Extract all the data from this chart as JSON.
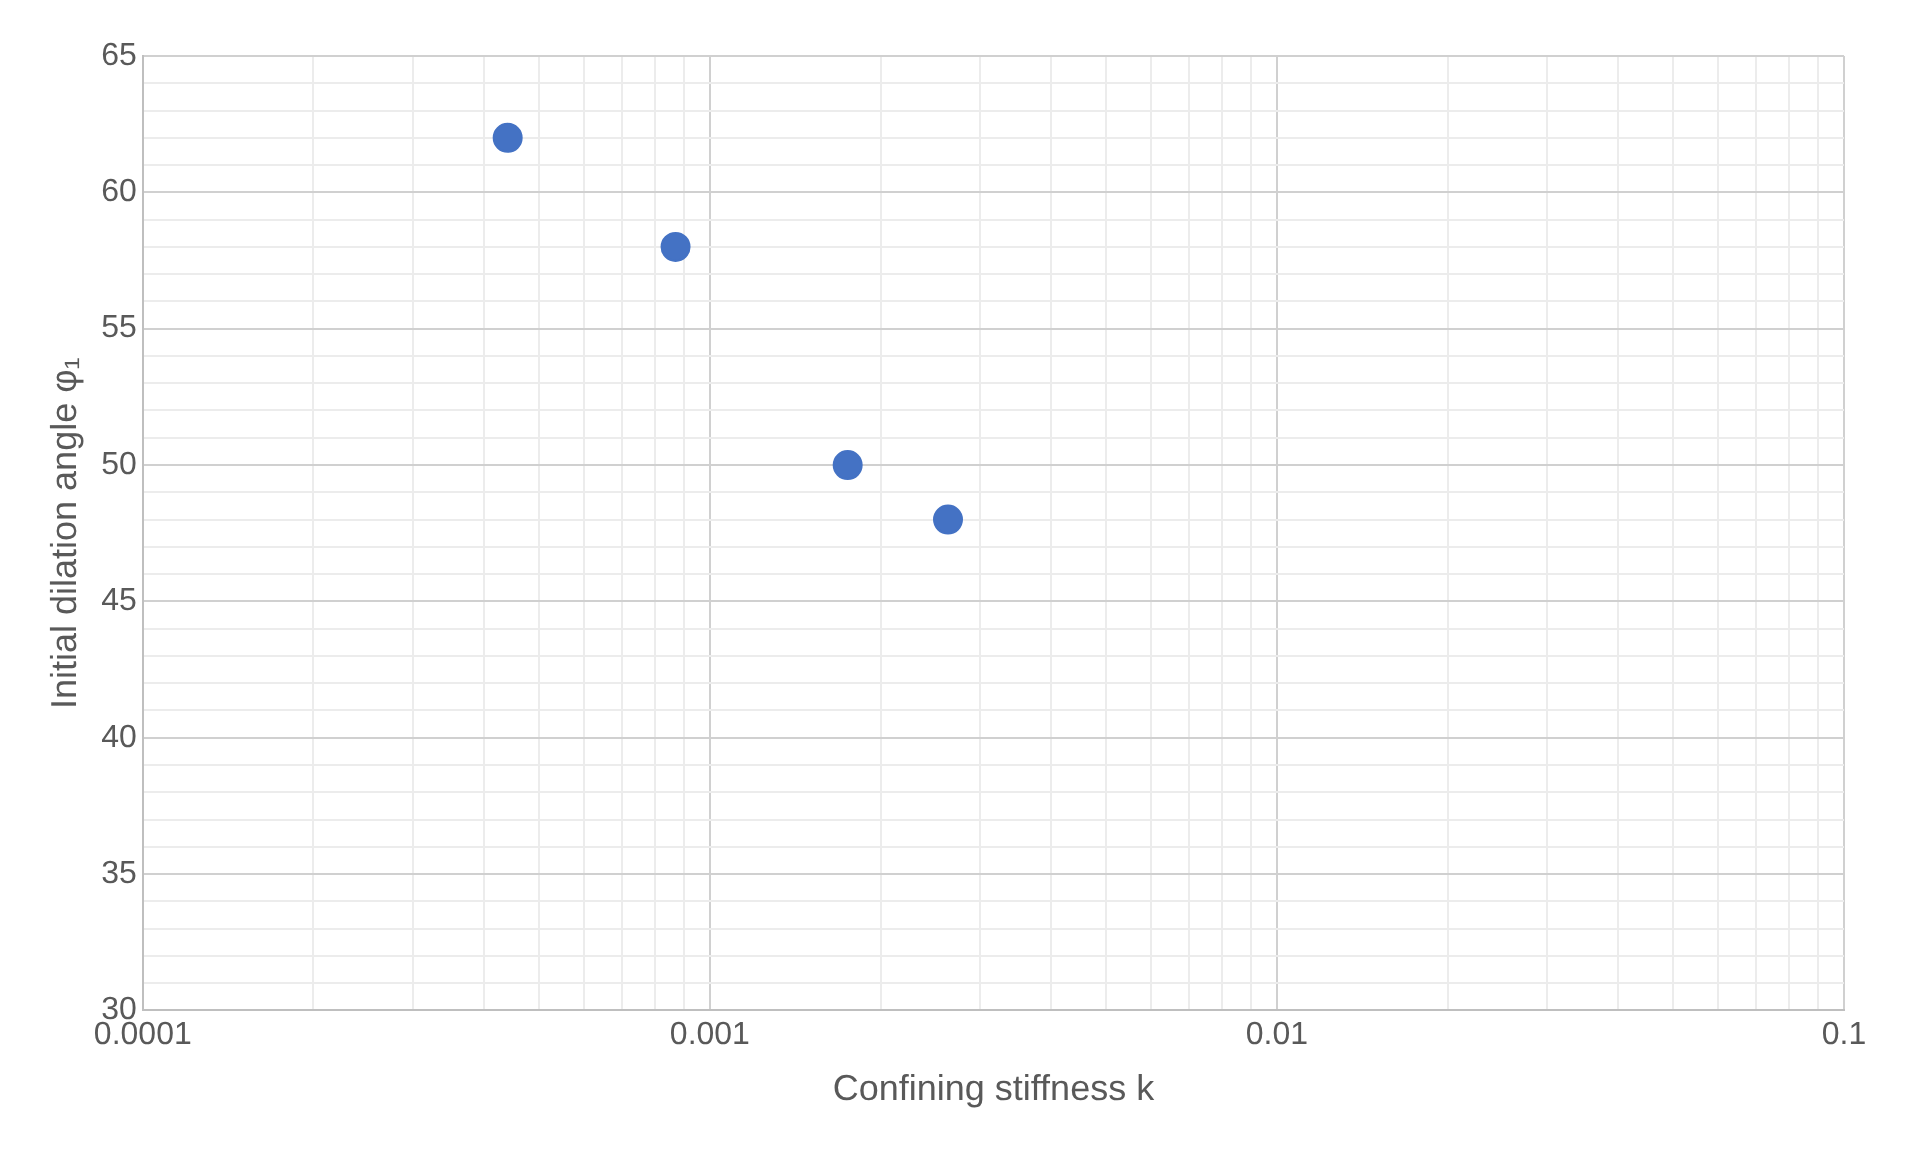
{
  "chart_data": {
    "type": "scatter",
    "xlabel": "Confining stiffness k",
    "ylabel": "Initial dilation angle φ₁",
    "x": [
      0.00044,
      0.00087,
      0.00175,
      0.00263
    ],
    "series": [
      {
        "color": "#4472c4",
        "values": [
          62,
          58,
          50,
          48
        ]
      }
    ],
    "log": "x",
    "xlim": [
      0.0001,
      0.1
    ],
    "xticks": [
      0.0001,
      {
        "value": 0.0002,
        "label": null
      },
      {
        "value": 0.0003,
        "label": null
      },
      {
        "value": 0.0004,
        "label": null
      },
      {
        "value": 0.0005,
        "label": null
      },
      {
        "value": 0.0006,
        "label": null
      },
      {
        "value": 0.0007,
        "label": null
      },
      {
        "value": 0.0008,
        "label": null
      },
      {
        "value": 0.0009,
        "label": null
      },
      0.001,
      {
        "value": 0.002,
        "label": null
      },
      {
        "value": 0.003,
        "label": null
      },
      {
        "value": 0.004,
        "label": null
      },
      {
        "value": 0.005,
        "label": null
      },
      {
        "value": 0.006,
        "label": null
      },
      {
        "value": 0.007,
        "label": null
      },
      {
        "value": 0.008,
        "label": null
      },
      {
        "value": 0.009,
        "label": null
      },
      0.01,
      {
        "value": 0.02,
        "label": null
      },
      {
        "value": 0.03,
        "label": null
      },
      {
        "value": 0.04,
        "label": null
      },
      {
        "value": 0.05,
        "label": null
      },
      {
        "value": 0.06,
        "label": null
      },
      {
        "value": 0.07,
        "label": null
      },
      {
        "value": 0.08,
        "label": null
      },
      {
        "value": 0.09,
        "label": null
      },
      0.1
    ],
    "ylim": [
      30,
      65
    ],
    "yticks": [
      30,
      {
        "value": 31,
        "label": null
      },
      {
        "value": 32,
        "label": null
      },
      {
        "value": 33,
        "label": null
      },
      {
        "value": 34,
        "label": null
      },
      35,
      {
        "value": 36,
        "label": null
      },
      {
        "value": 37,
        "label": null
      },
      {
        "value": 38,
        "label": null
      },
      {
        "value": 39,
        "label": null
      },
      40,
      {
        "value": 41,
        "label": null
      },
      {
        "value": 42,
        "label": null
      },
      {
        "value": 43,
        "label": null
      },
      {
        "value": 44,
        "label": null
      },
      45,
      {
        "value": 46,
        "label": null
      },
      {
        "value": 47,
        "label": null
      },
      {
        "value": 48,
        "label": null
      },
      {
        "value": 49,
        "label": null
      },
      50,
      {
        "value": 51,
        "label": null
      },
      {
        "value": 52,
        "label": null
      },
      {
        "value": 53,
        "label": null
      },
      {
        "value": 54,
        "label": null
      },
      55,
      {
        "value": 56,
        "label": null
      },
      {
        "value": 57,
        "label": null
      },
      {
        "value": 58,
        "label": null
      },
      {
        "value": 59,
        "label": null
      },
      60,
      {
        "value": 61,
        "label": null
      },
      {
        "value": 62,
        "label": null
      },
      {
        "value": 63,
        "label": null
      },
      {
        "value": 64,
        "label": null
      },
      65
    ],
    "grid": true,
    "marker": "circle"
  }
}
